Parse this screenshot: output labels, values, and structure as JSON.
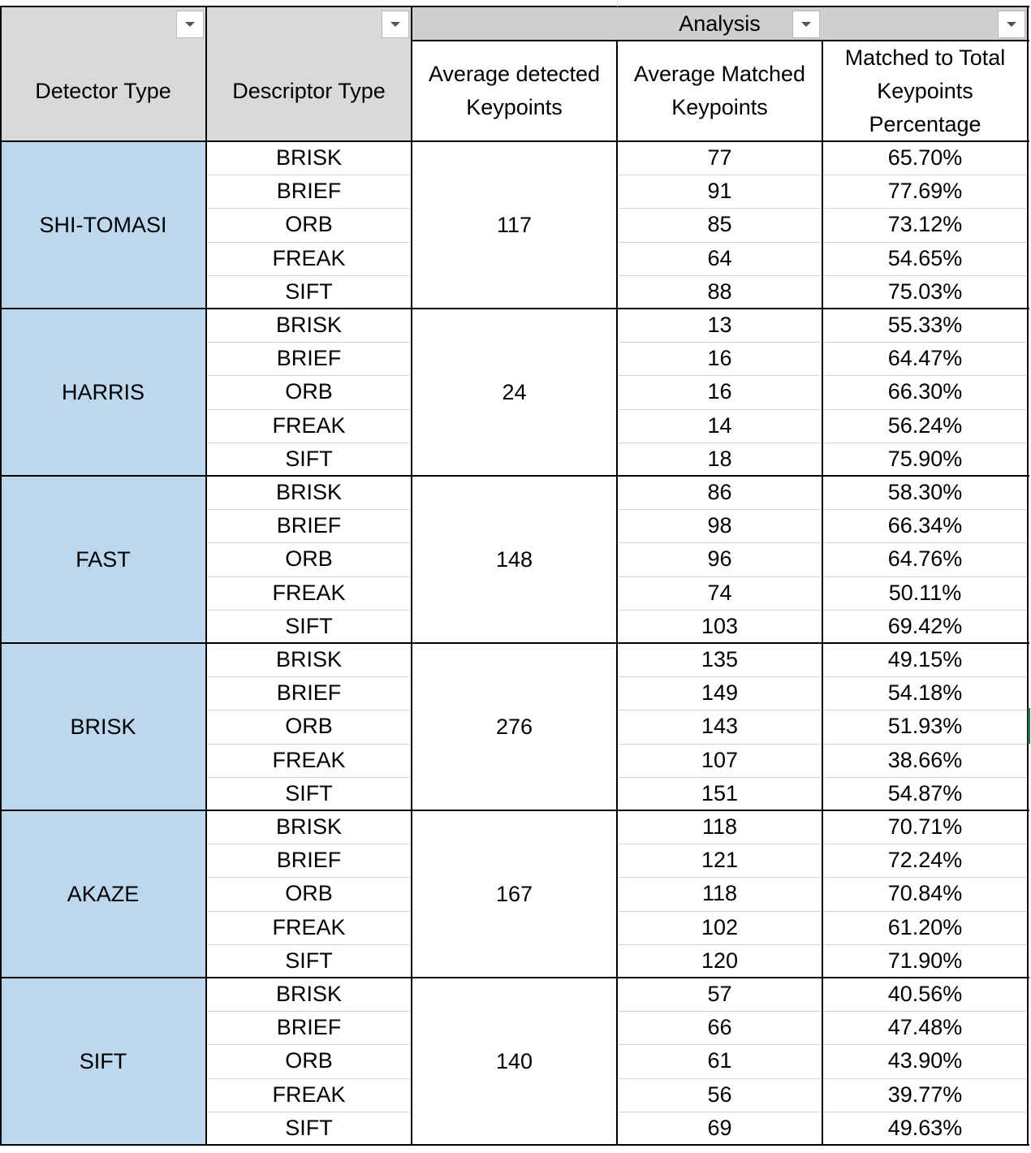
{
  "header": {
    "group_label": "Analysis",
    "columns": [
      "Detector Type",
      "Descriptor Type",
      "Average detected Keypoints",
      "Average Matched Keypoints",
      "Matched to Total Keypoints Percentage"
    ]
  },
  "groups": [
    {
      "detector": "SHI-TOMASI",
      "avg_detected": "117",
      "rows": [
        {
          "descriptor": "BRISK",
          "matched": "77",
          "pct": "65.70%"
        },
        {
          "descriptor": "BRIEF",
          "matched": "91",
          "pct": "77.69%"
        },
        {
          "descriptor": "ORB",
          "matched": "85",
          "pct": "73.12%"
        },
        {
          "descriptor": "FREAK",
          "matched": "64",
          "pct": "54.65%"
        },
        {
          "descriptor": "SIFT",
          "matched": "88",
          "pct": "75.03%"
        }
      ]
    },
    {
      "detector": "HARRIS",
      "avg_detected": "24",
      "rows": [
        {
          "descriptor": "BRISK",
          "matched": "13",
          "pct": "55.33%"
        },
        {
          "descriptor": "BRIEF",
          "matched": "16",
          "pct": "64.47%"
        },
        {
          "descriptor": "ORB",
          "matched": "16",
          "pct": "66.30%"
        },
        {
          "descriptor": "FREAK",
          "matched": "14",
          "pct": "56.24%"
        },
        {
          "descriptor": "SIFT",
          "matched": "18",
          "pct": "75.90%"
        }
      ]
    },
    {
      "detector": "FAST",
      "avg_detected": "148",
      "rows": [
        {
          "descriptor": "BRISK",
          "matched": "86",
          "pct": "58.30%"
        },
        {
          "descriptor": "BRIEF",
          "matched": "98",
          "pct": "66.34%"
        },
        {
          "descriptor": "ORB",
          "matched": "96",
          "pct": "64.76%"
        },
        {
          "descriptor": "FREAK",
          "matched": "74",
          "pct": "50.11%"
        },
        {
          "descriptor": "SIFT",
          "matched": "103",
          "pct": "69.42%"
        }
      ]
    },
    {
      "detector": "BRISK",
      "avg_detected": "276",
      "rows": [
        {
          "descriptor": "BRISK",
          "matched": "135",
          "pct": "49.15%"
        },
        {
          "descriptor": "BRIEF",
          "matched": "149",
          "pct": "54.18%"
        },
        {
          "descriptor": "ORB",
          "matched": "143",
          "pct": "51.93%"
        },
        {
          "descriptor": "FREAK",
          "matched": "107",
          "pct": "38.66%"
        },
        {
          "descriptor": "SIFT",
          "matched": "151",
          "pct": "54.87%"
        }
      ]
    },
    {
      "detector": "AKAZE",
      "avg_detected": "167",
      "rows": [
        {
          "descriptor": "BRISK",
          "matched": "118",
          "pct": "70.71%"
        },
        {
          "descriptor": "BRIEF",
          "matched": "121",
          "pct": "72.24%"
        },
        {
          "descriptor": "ORB",
          "matched": "118",
          "pct": "70.84%"
        },
        {
          "descriptor": "FREAK",
          "matched": "102",
          "pct": "61.20%"
        },
        {
          "descriptor": "SIFT",
          "matched": "120",
          "pct": "71.90%"
        }
      ]
    },
    {
      "detector": "SIFT",
      "avg_detected": "140",
      "rows": [
        {
          "descriptor": "BRISK",
          "matched": "57",
          "pct": "40.56%"
        },
        {
          "descriptor": "BRIEF",
          "matched": "66",
          "pct": "47.48%"
        },
        {
          "descriptor": "ORB",
          "matched": "61",
          "pct": "43.90%"
        },
        {
          "descriptor": "FREAK",
          "matched": "56",
          "pct": "39.77%"
        },
        {
          "descriptor": "SIFT",
          "matched": "69",
          "pct": "49.63%"
        }
      ]
    }
  ],
  "icons": {
    "filter": "filter-dropdown-icon"
  },
  "colors": {
    "header_bg": "#d9d9d9",
    "group_header_bg": "#d0cece",
    "detector_bg": "#bdd7ee",
    "grid_line": "#000000",
    "selection": "#217346"
  }
}
